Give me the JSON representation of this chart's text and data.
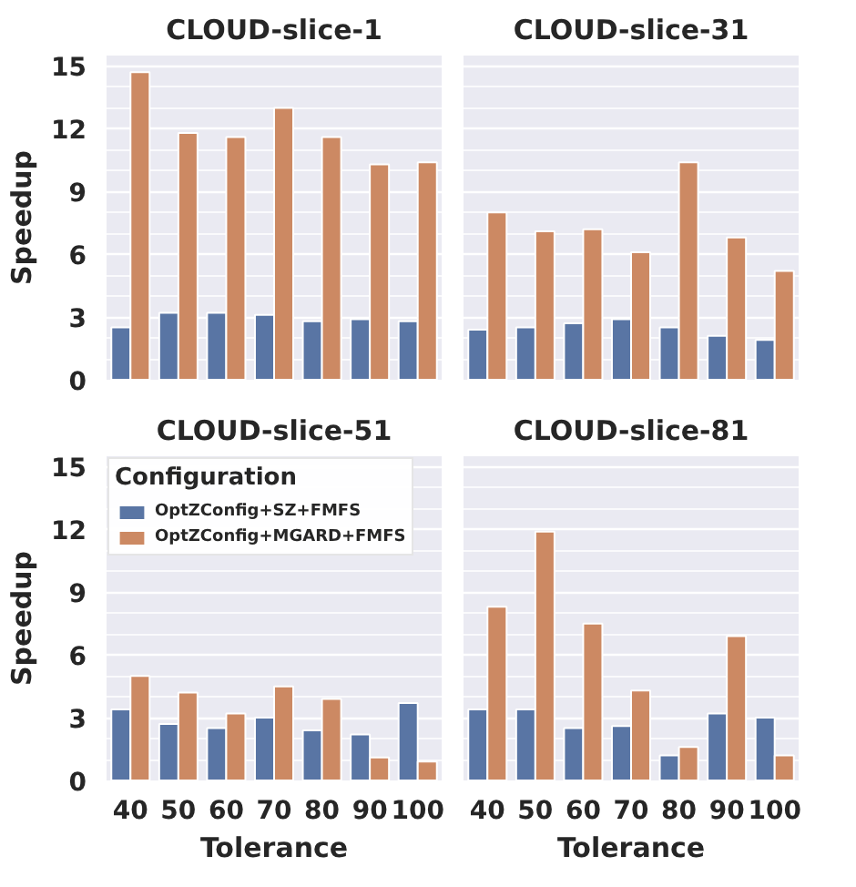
{
  "chart_data": [
    {
      "type": "bar",
      "title": "CLOUD-slice-1",
      "ylabel": "Speedup",
      "categories": [
        "40",
        "50",
        "60",
        "70",
        "80",
        "90",
        "100"
      ],
      "ylim": [
        0,
        15.5
      ],
      "yticks": [
        0,
        3,
        6,
        9,
        12,
        15
      ],
      "grid": true,
      "tick_labels": "y",
      "series": [
        {
          "color": "#5975a4",
          "values": [
            2.5,
            3.2,
            3.2,
            3.1,
            2.8,
            2.9,
            2.8
          ]
        },
        {
          "color": "#cc8963",
          "values": [
            14.7,
            11.8,
            11.6,
            13.0,
            11.6,
            10.3,
            10.4
          ]
        }
      ]
    },
    {
      "type": "bar",
      "title": "CLOUD-slice-31",
      "categories": [
        "40",
        "50",
        "60",
        "70",
        "80",
        "90",
        "100"
      ],
      "ylim": [
        0,
        15.5
      ],
      "yticks": [
        0,
        3,
        6,
        9,
        12,
        15
      ],
      "grid": true,
      "tick_labels": false,
      "series": [
        {
          "color": "#5975a4",
          "values": [
            2.4,
            2.5,
            2.7,
            2.9,
            2.5,
            2.1,
            1.9
          ]
        },
        {
          "color": "#cc8963",
          "values": [
            8.0,
            7.1,
            7.2,
            6.1,
            10.4,
            6.8,
            5.2
          ]
        }
      ]
    },
    {
      "type": "bar",
      "title": "CLOUD-slice-51",
      "ylabel": "Speedup",
      "xlabel": "Tolerance",
      "categories": [
        "40",
        "50",
        "60",
        "70",
        "80",
        "90",
        "100"
      ],
      "ylim": [
        0,
        15.5
      ],
      "yticks": [
        0,
        3,
        6,
        9,
        12,
        15
      ],
      "grid": true,
      "legend": "top left",
      "legend_title": "Configuration",
      "series": [
        {
          "name": "OptZConfig+SZ+FMFS",
          "color": "#5975a4",
          "values": [
            3.4,
            2.7,
            2.5,
            3.0,
            2.4,
            2.2,
            3.7
          ]
        },
        {
          "name": "OptZConfig+MGARD+FMFS",
          "color": "#cc8963",
          "values": [
            5.0,
            4.2,
            3.2,
            4.5,
            3.9,
            1.1,
            0.9
          ]
        }
      ]
    },
    {
      "type": "bar",
      "title": "CLOUD-slice-81",
      "xlabel": "Tolerance",
      "categories": [
        "40",
        "50",
        "60",
        "70",
        "80",
        "90",
        "100"
      ],
      "ylim": [
        0,
        15.5
      ],
      "yticks": [
        0,
        3,
        6,
        9,
        12,
        15
      ],
      "grid": true,
      "tick_labels": "x",
      "series": [
        {
          "color": "#5975a4",
          "values": [
            3.4,
            3.4,
            2.5,
            2.6,
            1.2,
            3.2,
            3.0
          ]
        },
        {
          "color": "#cc8963",
          "values": [
            8.3,
            11.9,
            7.5,
            4.3,
            1.6,
            6.9,
            1.2
          ]
        }
      ]
    }
  ]
}
